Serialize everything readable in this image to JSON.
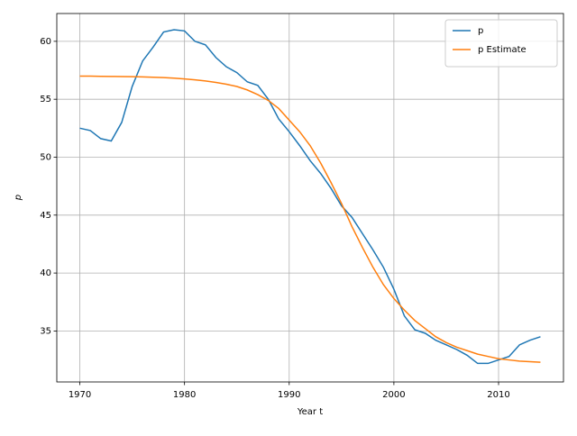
{
  "chart_data": {
    "type": "line",
    "xlabel": "Year t",
    "ylabel": "p",
    "x": [
      1970,
      1971,
      1972,
      1973,
      1974,
      1975,
      1976,
      1977,
      1978,
      1979,
      1980,
      1981,
      1982,
      1983,
      1984,
      1985,
      1986,
      1987,
      1988,
      1989,
      1990,
      1991,
      1992,
      1993,
      1994,
      1995,
      1996,
      1997,
      1998,
      1999,
      2000,
      2001,
      2002,
      2003,
      2004,
      2005,
      2006,
      2007,
      2008,
      2009,
      2010,
      2011,
      2012,
      2013,
      2014
    ],
    "series": [
      {
        "name": "p",
        "color": "#1f77b4",
        "values": [
          52.5,
          52.3,
          51.6,
          51.4,
          53.0,
          56.1,
          58.3,
          59.5,
          60.8,
          61.0,
          60.9,
          60.0,
          59.7,
          58.6,
          57.8,
          57.3,
          56.5,
          56.2,
          55.0,
          53.3,
          52.2,
          51.0,
          49.7,
          48.6,
          47.3,
          45.8,
          44.8,
          43.4,
          42.0,
          40.5,
          38.6,
          36.3,
          35.1,
          34.8,
          34.2,
          33.8,
          33.4,
          32.9,
          32.2,
          32.2,
          32.5,
          32.8,
          33.8,
          34.2,
          34.5
        ]
      },
      {
        "name": "p Estimate",
        "color": "#ff7f0e",
        "values": [
          57.0,
          57.0,
          56.98,
          56.97,
          56.96,
          56.95,
          56.93,
          56.9,
          56.87,
          56.82,
          56.75,
          56.68,
          56.58,
          56.45,
          56.3,
          56.1,
          55.8,
          55.4,
          54.9,
          54.2,
          53.2,
          52.2,
          51.0,
          49.5,
          47.8,
          46.0,
          44.0,
          42.2,
          40.5,
          39.0,
          37.8,
          36.8,
          35.9,
          35.2,
          34.5,
          34.0,
          33.6,
          33.3,
          33.0,
          32.8,
          32.6,
          32.5,
          32.4,
          32.35,
          32.3
        ]
      }
    ],
    "xlim": [
      1967.8,
      2016.2
    ],
    "xticks": [
      1970,
      1980,
      1990,
      2000,
      2010
    ],
    "ylim": [
      30.6,
      62.4
    ],
    "yticks": [
      35,
      40,
      45,
      50,
      55,
      60
    ],
    "grid": true,
    "legend": "upper right"
  }
}
